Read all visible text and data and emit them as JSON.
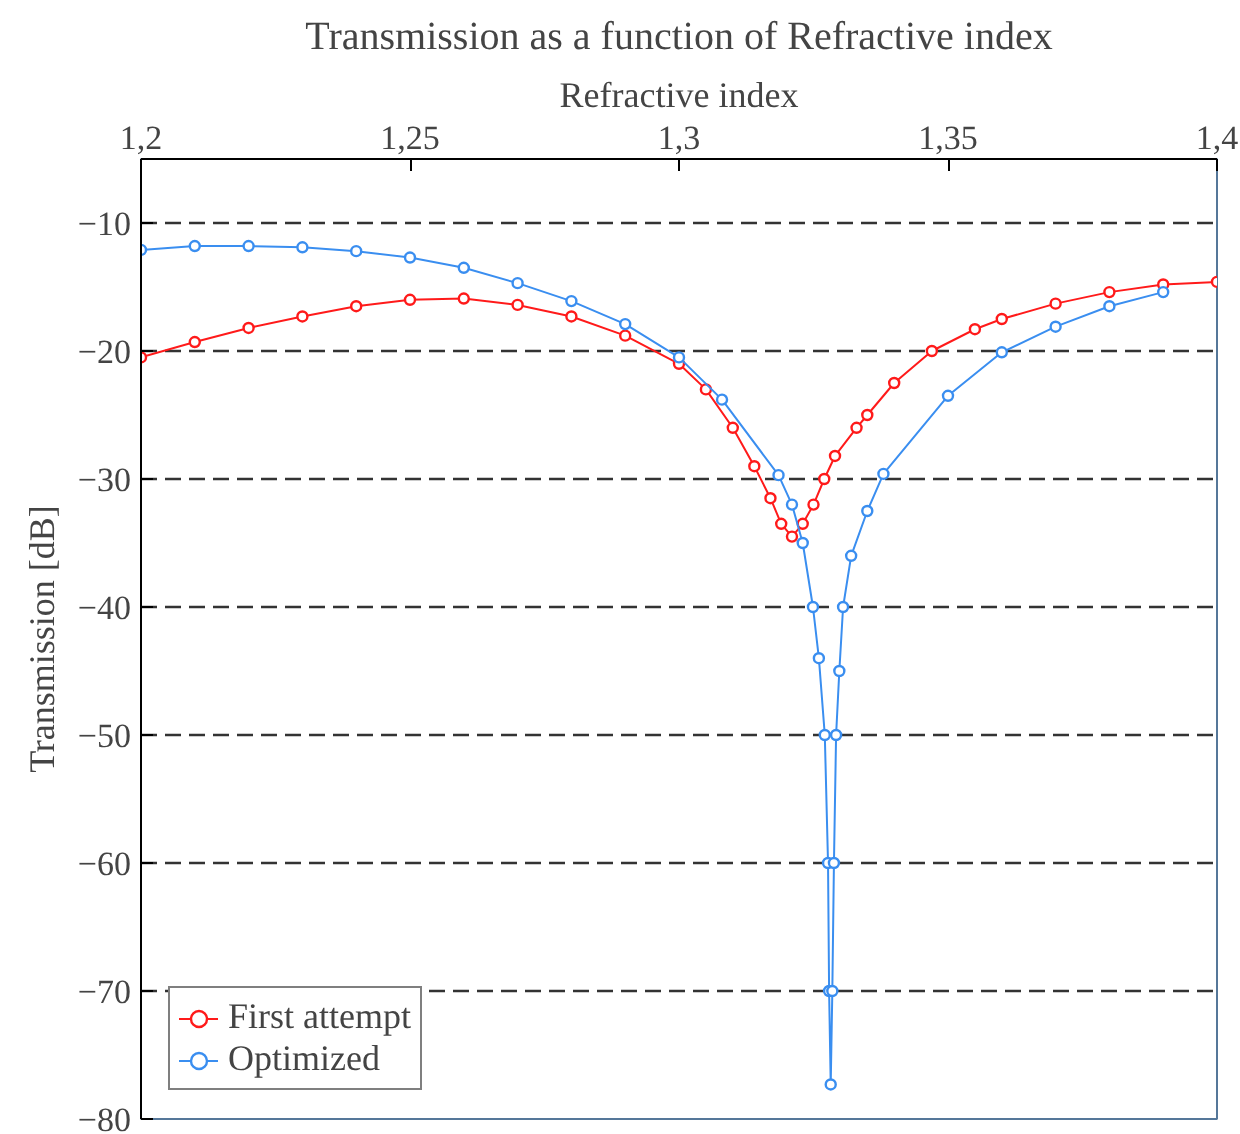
{
  "chart_data": {
    "type": "line",
    "title": "Transmission as a function of Refractive index",
    "xlabel": "Refractive index",
    "ylabel": "Transmission [dB]",
    "xlim": [
      1.2,
      1.4
    ],
    "ylim": [
      -80,
      -5
    ],
    "xticks": [
      {
        "value": 1.2,
        "label": "1,2"
      },
      {
        "value": 1.25,
        "label": "1,25"
      },
      {
        "value": 1.3,
        "label": "1,3"
      },
      {
        "value": 1.35,
        "label": "1,35"
      },
      {
        "value": 1.4,
        "label": "1,4"
      }
    ],
    "yticks": [
      -80,
      -70,
      -60,
      -50,
      -40,
      -30,
      -20,
      -10
    ],
    "grid": "y",
    "legend": "bottom left",
    "marker": "circle",
    "line_style": "solid",
    "series": [
      {
        "name": "First attempt",
        "color": "#ff1a1a",
        "x": [
          1.2,
          1.21,
          1.22,
          1.23,
          1.24,
          1.25,
          1.26,
          1.27,
          1.28,
          1.29,
          1.3,
          1.305,
          1.31,
          1.314,
          1.317,
          1.319,
          1.321,
          1.323,
          1.325,
          1.327,
          1.329,
          1.333,
          1.335,
          1.34,
          1.347,
          1.355,
          1.36,
          1.37,
          1.38,
          1.39,
          1.4
        ],
        "values": [
          -20.5,
          -19.3,
          -18.2,
          -17.3,
          -16.5,
          -16.0,
          -15.9,
          -16.4,
          -17.3,
          -18.8,
          -21.0,
          -23.0,
          -26.0,
          -29.0,
          -31.5,
          -33.5,
          -34.5,
          -33.5,
          -32.0,
          -30.0,
          -28.2,
          -26.0,
          -25.0,
          -22.5,
          -20.0,
          -18.3,
          -17.5,
          -16.3,
          -15.4,
          -14.8,
          -14.6
        ]
      },
      {
        "name": "Optimized",
        "color": "#3a8ef0",
        "x": [
          1.2,
          1.21,
          1.22,
          1.23,
          1.24,
          1.25,
          1.26,
          1.27,
          1.28,
          1.29,
          1.3,
          1.308,
          1.3185,
          1.321,
          1.323,
          1.3249,
          1.326,
          1.3271,
          1.3277,
          1.3279,
          1.3282,
          1.3285,
          1.3288,
          1.3292,
          1.3298,
          1.3305,
          1.332,
          1.335,
          1.338,
          1.35,
          1.36,
          1.37,
          1.38,
          1.39
        ],
        "values": [
          -12.1,
          -11.8,
          -11.8,
          -11.9,
          -12.2,
          -12.7,
          -13.5,
          -14.7,
          -16.1,
          -17.9,
          -20.5,
          -23.8,
          -29.7,
          -32.0,
          -35.0,
          -40.0,
          -44.0,
          -50.0,
          -60.0,
          -70.0,
          -77.3,
          -70.0,
          -60.0,
          -50.0,
          -45.0,
          -40.0,
          -36.0,
          -32.5,
          -29.6,
          -23.5,
          -20.1,
          -18.1,
          -16.5,
          -15.4
        ]
      }
    ]
  }
}
